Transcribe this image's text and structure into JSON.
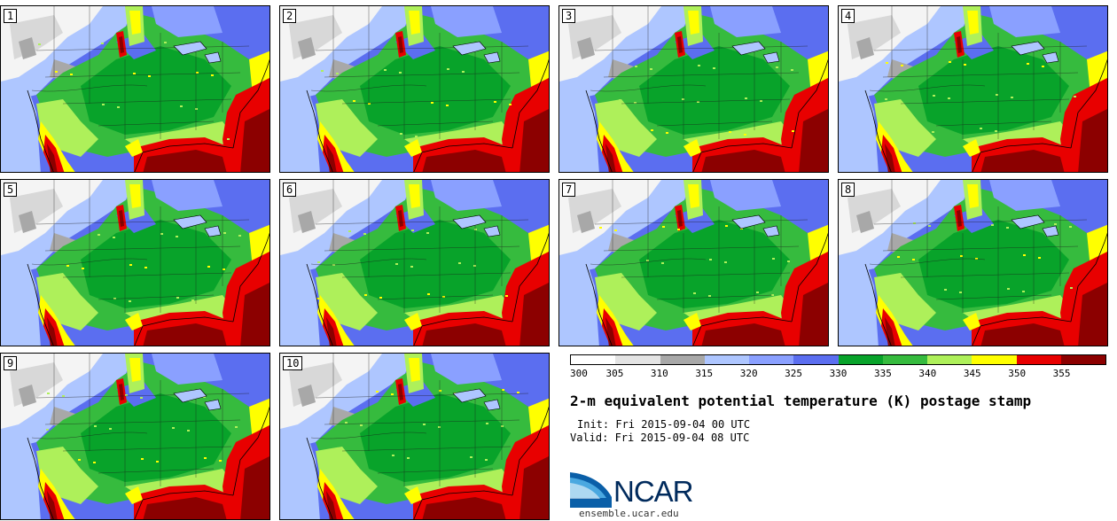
{
  "panels": [
    {
      "label": "1"
    },
    {
      "label": "2"
    },
    {
      "label": "3"
    },
    {
      "label": "4"
    },
    {
      "label": "5"
    },
    {
      "label": "6"
    },
    {
      "label": "7"
    },
    {
      "label": "8"
    },
    {
      "label": "9"
    },
    {
      "label": "10"
    }
  ],
  "colorbar": {
    "colors": [
      "#ffffff",
      "#e4e4e4",
      "#a8a8a8",
      "#aec6ff",
      "#8aa0ff",
      "#5b6ef0",
      "#08a32a",
      "#36bb3e",
      "#aef05a",
      "#ffff00",
      "#e80000",
      "#8c0000"
    ],
    "labels": [
      "300",
      "305",
      "310",
      "315",
      "320",
      "325",
      "330",
      "335",
      "340",
      "345",
      "350",
      "355"
    ]
  },
  "title": "2-m equivalent potential temperature (K) postage stamp",
  "init": "Init: Fri 2015-09-04 00 UTC",
  "valid": "Valid: Fri 2015-09-04 08 UTC",
  "logo": {
    "name": "NCAR",
    "site": "ensemble.ucar.edu"
  }
}
